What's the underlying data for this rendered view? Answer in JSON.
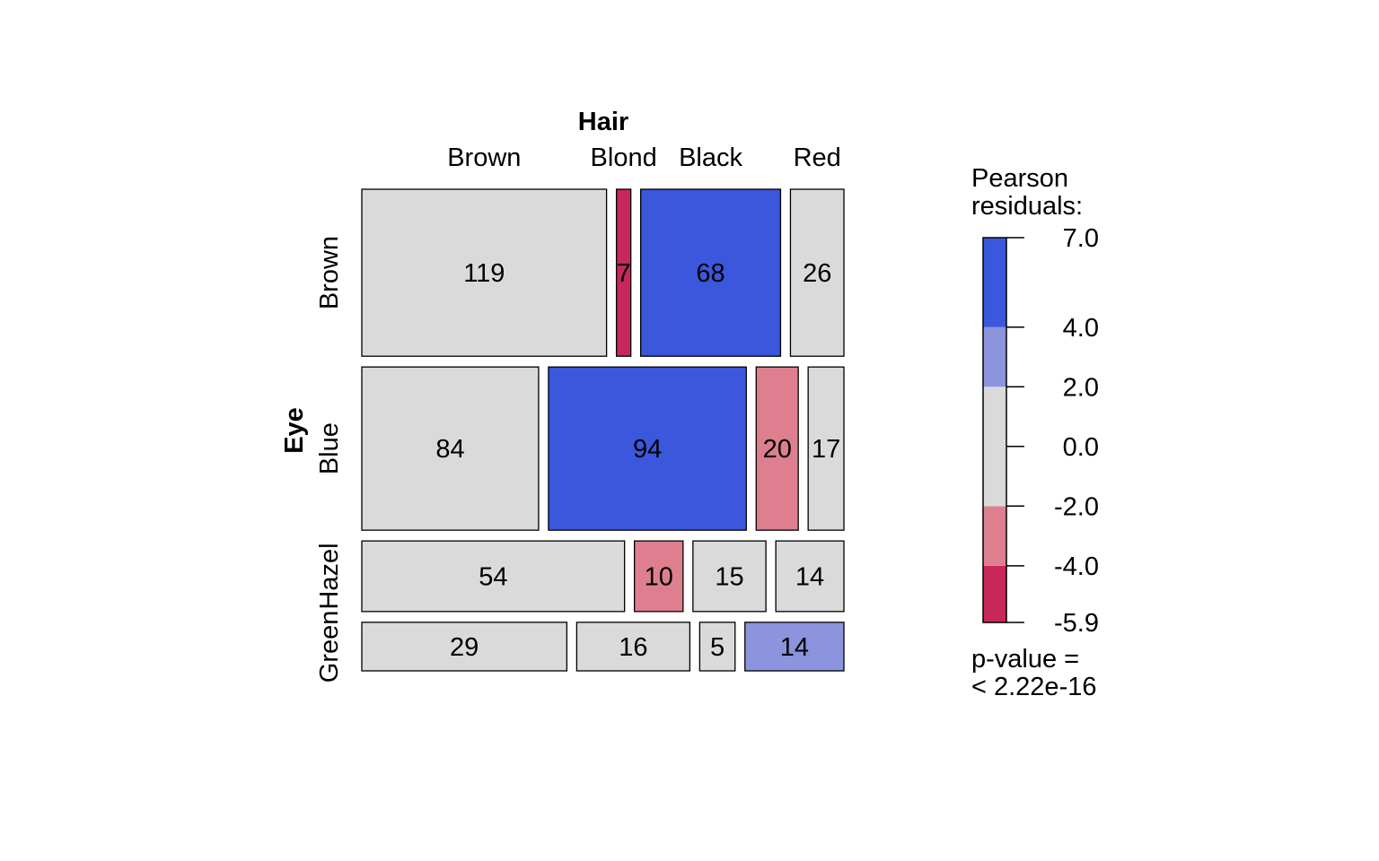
{
  "chart_data": {
    "type": "mosaic",
    "col_variable": "Hair",
    "row_variable": "Eye",
    "columns": [
      "Brown",
      "Blond",
      "Black",
      "Red"
    ],
    "rows": [
      "Brown",
      "Blue",
      "Hazel",
      "Green"
    ],
    "counts": [
      [
        119,
        7,
        68,
        26
      ],
      [
        84,
        94,
        20,
        17
      ],
      [
        54,
        10,
        15,
        14
      ],
      [
        29,
        16,
        5,
        14
      ]
    ],
    "shading": [
      [
        "neutral",
        "strong-negative",
        "strong-positive",
        "neutral"
      ],
      [
        "neutral",
        "strong-positive",
        "moderate-negative",
        "neutral"
      ],
      [
        "neutral",
        "moderate-negative",
        "neutral",
        "neutral"
      ],
      [
        "neutral",
        "neutral",
        "neutral",
        "moderate-positive"
      ]
    ],
    "colors": {
      "strong-positive": "#3B57DC",
      "moderate-positive": "#8C94DD",
      "neutral": "#DADADA",
      "moderate-negative": "#DD7F8F",
      "strong-negative": "#C82859"
    },
    "legend": {
      "title_line1": "Pearson",
      "title_line2": "residuals:",
      "range": [
        -5.9,
        7.0
      ],
      "breaks": [
        -5.9,
        -4.0,
        -2.0,
        2.0,
        4.0,
        7.0
      ],
      "ticks": [
        7.0,
        4.0,
        2.0,
        0.0,
        -2.0,
        -4.0,
        -5.9
      ],
      "tick_labels": [
        "7.0",
        "4.0",
        "2.0",
        "0.0",
        "-2.0",
        "-4.0",
        "-5.9"
      ],
      "band_colors": [
        "strong-negative",
        "moderate-negative",
        "neutral",
        "moderate-positive",
        "strong-positive"
      ],
      "pvalue_line1": "p-value =",
      "pvalue_line2": "< 2.22e-16"
    }
  }
}
